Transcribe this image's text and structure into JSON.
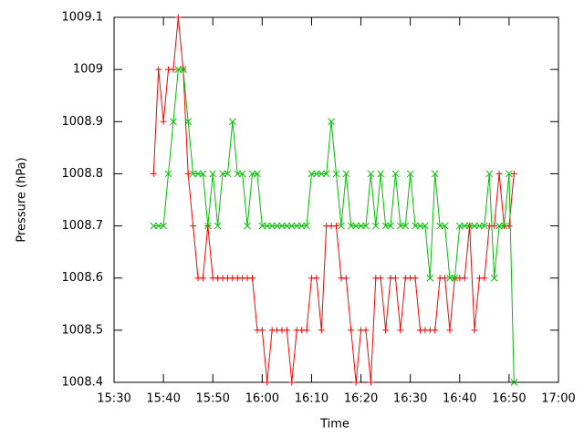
{
  "chart_data": {
    "type": "line",
    "xlabel": "Time",
    "ylabel": "Pressure (hPa)",
    "x": [
      "15:38",
      "15:39",
      "15:40",
      "15:41",
      "15:42",
      "15:43",
      "15:44",
      "15:45",
      "15:46",
      "15:47",
      "15:48",
      "15:49",
      "15:50",
      "15:51",
      "15:52",
      "15:53",
      "15:54",
      "15:55",
      "15:56",
      "15:57",
      "15:58",
      "15:59",
      "16:00",
      "16:01",
      "16:02",
      "16:03",
      "16:04",
      "16:05",
      "16:06",
      "16:07",
      "16:08",
      "16:09",
      "16:10",
      "16:11",
      "16:12",
      "16:13",
      "16:14",
      "16:15",
      "16:16",
      "16:17",
      "16:18",
      "16:19",
      "16:20",
      "16:21",
      "16:22",
      "16:23",
      "16:24",
      "16:25",
      "16:26",
      "16:27",
      "16:28",
      "16:29",
      "16:30",
      "16:31",
      "16:32",
      "16:33",
      "16:34",
      "16:35",
      "16:36",
      "16:37",
      "16:38",
      "16:39",
      "16:40",
      "16:41",
      "16:42",
      "16:43",
      "16:44",
      "16:45",
      "16:46",
      "16:47",
      "16:48",
      "16:49",
      "16:50",
      "16:51"
    ],
    "series": [
      {
        "color": "#ff0000",
        "marker": "plus",
        "values": [
          1008.8,
          1009,
          1008.9,
          1009,
          1009,
          1009.1,
          1009,
          1008.8,
          1008.7,
          1008.6,
          1008.6,
          1008.7,
          1008.6,
          1008.6,
          1008.6,
          1008.6,
          1008.6,
          1008.6,
          1008.6,
          1008.6,
          1008.6,
          1008.5,
          1008.5,
          1008.4,
          1008.5,
          1008.5,
          1008.5,
          1008.5,
          1008.4,
          1008.5,
          1008.5,
          1008.5,
          1008.6,
          1008.6,
          1008.5,
          1008.7,
          1008.7,
          1008.7,
          1008.6,
          1008.6,
          1008.5,
          1008.4,
          1008.5,
          1008.5,
          1008.4,
          1008.6,
          1008.6,
          1008.5,
          1008.6,
          1008.6,
          1008.5,
          1008.6,
          1008.6,
          1008.6,
          1008.5,
          1008.5,
          1008.5,
          1008.5,
          1008.6,
          1008.6,
          1008.5,
          1008.6,
          1008.6,
          1008.6,
          1008.7,
          1008.5,
          1008.6,
          1008.6,
          1008.7,
          1008.7,
          1008.8,
          1008.7,
          1008.7,
          1008.8
        ]
      },
      {
        "color": "#00c000",
        "marker": "cross",
        "values": [
          1008.7,
          1008.7,
          1008.7,
          1008.8,
          1008.9,
          1009,
          1009,
          1008.9,
          1008.8,
          1008.8,
          1008.8,
          1008.7,
          1008.8,
          1008.7,
          1008.8,
          1008.8,
          1008.9,
          1008.8,
          1008.8,
          1008.7,
          1008.8,
          1008.8,
          1008.7,
          1008.7,
          1008.7,
          1008.7,
          1008.7,
          1008.7,
          1008.7,
          1008.7,
          1008.7,
          1008.7,
          1008.8,
          1008.8,
          1008.8,
          1008.8,
          1008.9,
          1008.8,
          1008.7,
          1008.8,
          1008.7,
          1008.7,
          1008.7,
          1008.7,
          1008.8,
          1008.7,
          1008.8,
          1008.7,
          1008.7,
          1008.8,
          1008.7,
          1008.7,
          1008.8,
          1008.7,
          1008.7,
          1008.7,
          1008.6,
          1008.8,
          1008.7,
          1008.7,
          1008.6,
          1008.6,
          1008.7,
          1008.7,
          1008.7,
          1008.7,
          1008.7,
          1008.7,
          1008.8,
          1008.6,
          1008.7,
          1008.7,
          1008.8,
          1008.4
        ]
      }
    ],
    "xlim": [
      "15:30",
      "17:00"
    ],
    "xticks": [
      "15:30",
      "15:40",
      "15:50",
      "16:00",
      "16:10",
      "16:20",
      "16:30",
      "16:40",
      "16:50",
      "17:00"
    ],
    "ylim": [
      1008.4,
      1009.1
    ],
    "yticks": [
      1008.4,
      1008.5,
      1008.6,
      1008.7,
      1008.8,
      1008.9,
      1009,
      1009.1
    ]
  }
}
